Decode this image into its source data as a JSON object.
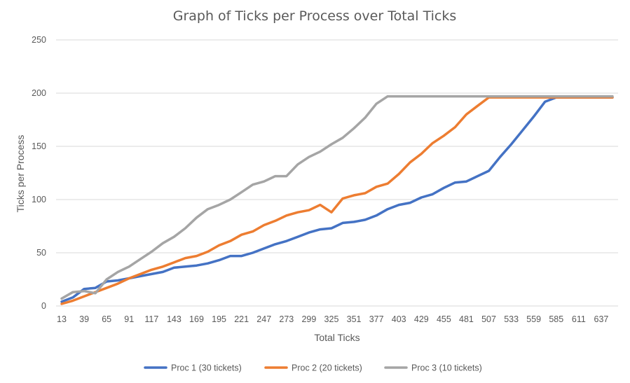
{
  "chart_data": {
    "type": "line",
    "title": "Graph of Ticks per Process over Total Ticks",
    "xlabel": "Total Ticks",
    "ylabel": "Ticks per Process",
    "ylim": [
      0,
      250
    ],
    "y_ticks": [
      0,
      50,
      100,
      150,
      200,
      250
    ],
    "x_tick_labels": [
      "13",
      "39",
      "65",
      "91",
      "117",
      "143",
      "169",
      "195",
      "221",
      "247",
      "273",
      "299",
      "325",
      "351",
      "377",
      "403",
      "429",
      "455",
      "481",
      "507",
      "533",
      "559",
      "585",
      "611",
      "637"
    ],
    "x": [
      13,
      26,
      39,
      52,
      65,
      78,
      91,
      104,
      117,
      130,
      143,
      156,
      169,
      182,
      195,
      208,
      221,
      234,
      247,
      260,
      273,
      286,
      299,
      312,
      325,
      338,
      351,
      364,
      377,
      390,
      403,
      416,
      429,
      442,
      455,
      468,
      481,
      494,
      507,
      520,
      533,
      546,
      559,
      572,
      585,
      598,
      611,
      624,
      637,
      650
    ],
    "grid": true,
    "legend_position": "bottom",
    "series": [
      {
        "name": "Proc 1 (30 tickets)",
        "color": "#4472c4",
        "values": [
          4,
          8,
          16,
          17,
          23,
          24,
          26,
          28,
          30,
          32,
          36,
          37,
          38,
          40,
          43,
          47,
          47,
          50,
          54,
          58,
          61,
          65,
          69,
          72,
          73,
          78,
          79,
          81,
          85,
          91,
          95,
          97,
          102,
          105,
          111,
          116,
          117,
          122,
          127,
          140,
          152,
          165,
          178,
          192,
          196,
          196,
          196,
          196,
          196,
          196
        ]
      },
      {
        "name": "Proc 2 (20 tickets)",
        "color": "#ed7d31",
        "values": [
          2,
          5,
          9,
          13,
          17,
          21,
          26,
          30,
          34,
          37,
          41,
          45,
          47,
          51,
          57,
          61,
          67,
          70,
          76,
          80,
          85,
          88,
          90,
          95,
          88,
          101,
          104,
          106,
          112,
          115,
          124,
          135,
          143,
          153,
          160,
          168,
          180,
          188,
          196,
          196,
          196,
          196,
          196,
          196,
          196,
          196,
          196,
          196,
          196,
          196
        ]
      },
      {
        "name": "Proc 3 (10 tickets)",
        "color": "#a5a5a5",
        "values": [
          7,
          13,
          14,
          12,
          25,
          32,
          37,
          44,
          51,
          59,
          65,
          73,
          83,
          91,
          95,
          100,
          107,
          114,
          117,
          122,
          122,
          133,
          140,
          145,
          152,
          158,
          167,
          177,
          190,
          197,
          197,
          197,
          197,
          197,
          197,
          197,
          197,
          197,
          197,
          197,
          197,
          197,
          197,
          197,
          197,
          197,
          197,
          197,
          197,
          197
        ]
      }
    ]
  }
}
